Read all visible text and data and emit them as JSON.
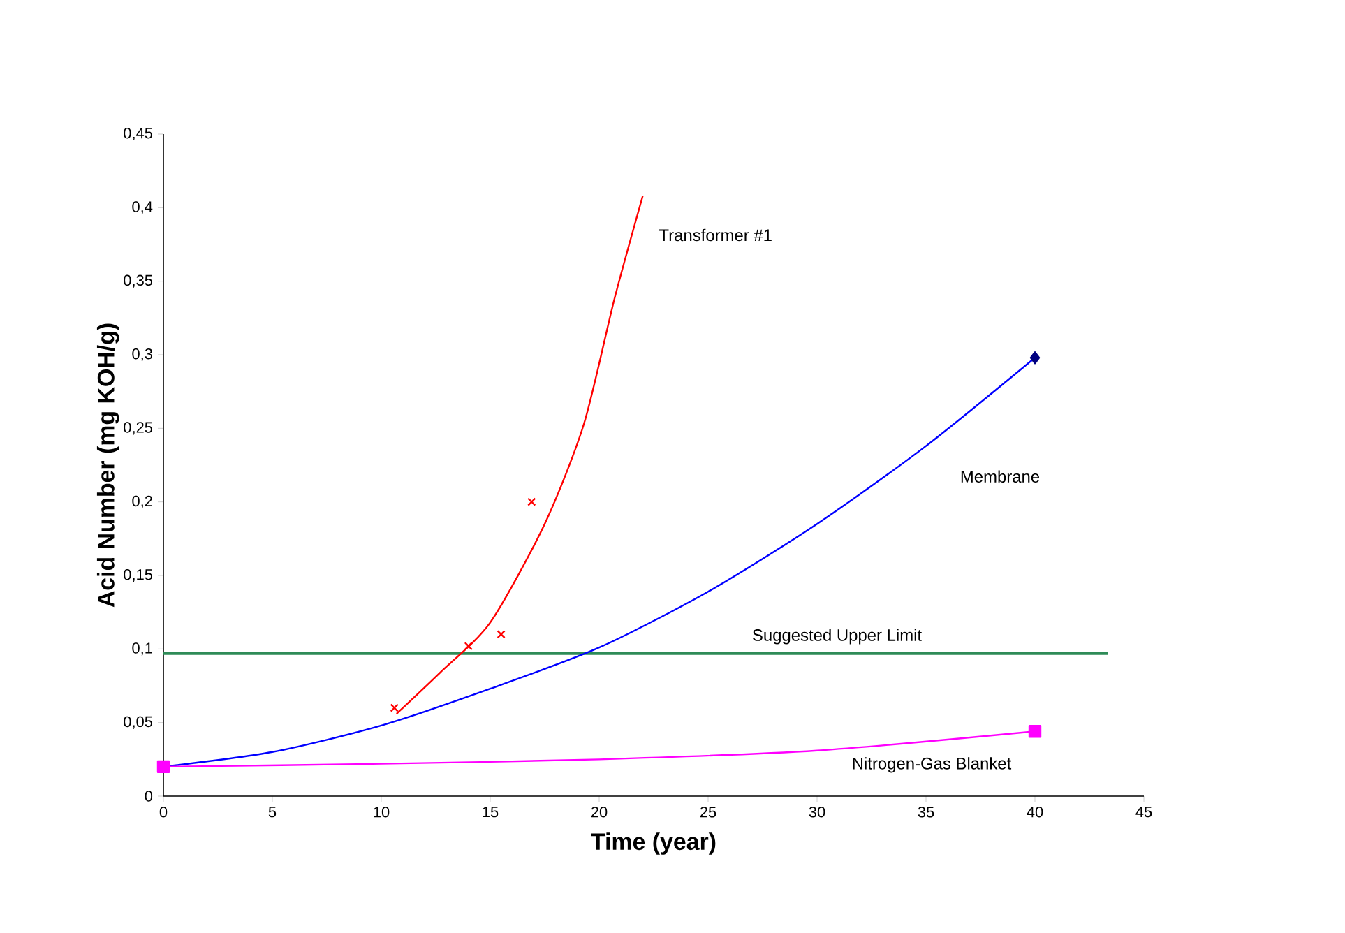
{
  "chart_data": {
    "type": "line",
    "xlabel": "Time (year)",
    "ylabel": "Acid Number (mg KOH/g)",
    "xlim": [
      0,
      45
    ],
    "xticks": [
      0,
      5,
      10,
      15,
      20,
      25,
      30,
      35,
      40,
      45
    ],
    "ylim": [
      0,
      0.45
    ],
    "yticks": [
      0,
      {
        "value": 0.05,
        "label": "0,05"
      },
      {
        "value": 0.1,
        "label": "0,1"
      },
      {
        "value": 0.15,
        "label": "0,15"
      },
      {
        "value": 0.2,
        "label": "0,2"
      },
      {
        "value": 0.25,
        "label": "0,25"
      },
      {
        "value": 0.3,
        "label": "0,3"
      },
      {
        "value": 0.35,
        "label": "0,35"
      },
      {
        "value": 0.4,
        "label": "0,4"
      },
      {
        "value": 0.45,
        "label": "0,45"
      }
    ],
    "grid": false,
    "series": [
      {
        "name": "Transformer #1",
        "marker": "none",
        "color": "#ff0000",
        "x": [
          10.7,
          12.7,
          15.0,
          17.5,
          19.3,
          20.7,
          22.0
        ],
        "values": [
          0.056,
          0.084,
          0.118,
          0.185,
          0.253,
          0.338,
          0.408
        ]
      },
      {
        "type": "scatter",
        "marker": "cross",
        "color": "#ff0000",
        "x": [
          10.6,
          14.0,
          15.5,
          16.9
        ],
        "values": [
          0.06,
          0.102,
          0.11,
          0.2
        ]
      },
      {
        "name": "Membrane",
        "marker": "none",
        "color": "#0000ff",
        "x": [
          0,
          5,
          10,
          15,
          20,
          25,
          30,
          35,
          40
        ],
        "values": [
          0.02,
          0.03,
          0.048,
          0.073,
          0.101,
          0.139,
          0.185,
          0.238,
          0.298
        ]
      },
      {
        "type": "scatter",
        "marker": "diamond",
        "color": "#000080",
        "x": [
          40
        ],
        "values": [
          0.298
        ]
      },
      {
        "name": "Nitrogen-Gas Blanket",
        "marker": "none",
        "color": "#ff00ff",
        "x": [
          0,
          10,
          20,
          30,
          40
        ],
        "values": [
          0.02,
          0.022,
          0.025,
          0.031,
          0.044
        ]
      },
      {
        "type": "scatter",
        "marker": "square",
        "color": "#ff00ff",
        "x": [
          0,
          40
        ],
        "values": [
          0.02,
          0.044
        ]
      }
    ],
    "ref_lines": [
      {
        "axis": "y",
        "value": 0.097,
        "label": "Suggested Upper Limit",
        "color": "#2e8b57"
      }
    ]
  }
}
